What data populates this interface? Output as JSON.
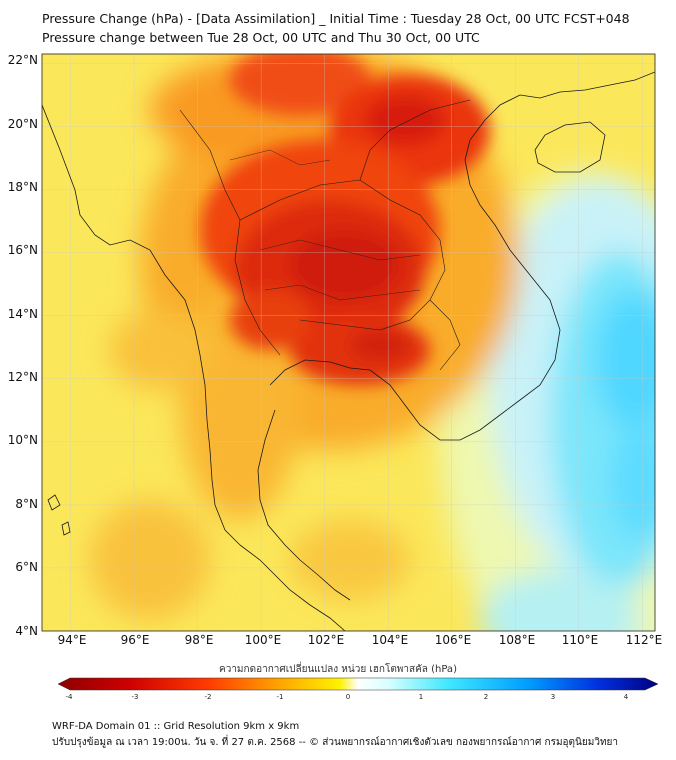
{
  "header": {
    "title": "Pressure Change (hPa) - [Data Assimilation] _ Initial Time : Tuesday 28 Oct, 00 UTC FCST+048",
    "subtitle": "Pressure change between Tue 28 Oct, 00 UTC and Thu 30 Oct, 00 UTC"
  },
  "map": {
    "lat_labels": [
      "22°N",
      "20°N",
      "18°N",
      "16°N",
      "14°N",
      "12°N",
      "10°N",
      "8°N",
      "6°N",
      "4°N"
    ],
    "lon_labels": [
      "94°E",
      "96°E",
      "98°E",
      "100°E",
      "102°E",
      "104°E",
      "106°E",
      "108°E",
      "110°E",
      "112°E"
    ],
    "lat_range": [
      4,
      22.3
    ],
    "lon_range": [
      93.1,
      112.4
    ]
  },
  "colorbar": {
    "title": "ความกดอากาศเปลี่ยนแปลง หน่วย เฮกโตพาสคัล (hPa)",
    "ticks": [
      "-4",
      "-3",
      "-2",
      "-1",
      "0",
      "1",
      "2",
      "3",
      "4"
    ],
    "range": [
      -4,
      4
    ]
  },
  "footer": {
    "line1": "WRF-DA Domain 01 :: Grid Resolution 9km x 9km",
    "line2": "ปรับปรุงข้อมูล ณ เวลา 19:00น. วัน จ. ที่ 27 ต.ค. 2568 -- © ส่วนพยากรณ์อากาศเชิงตัวเลข กองพยากรณ์อากาศ กรมอุตุนิยมวิทยา"
  }
}
